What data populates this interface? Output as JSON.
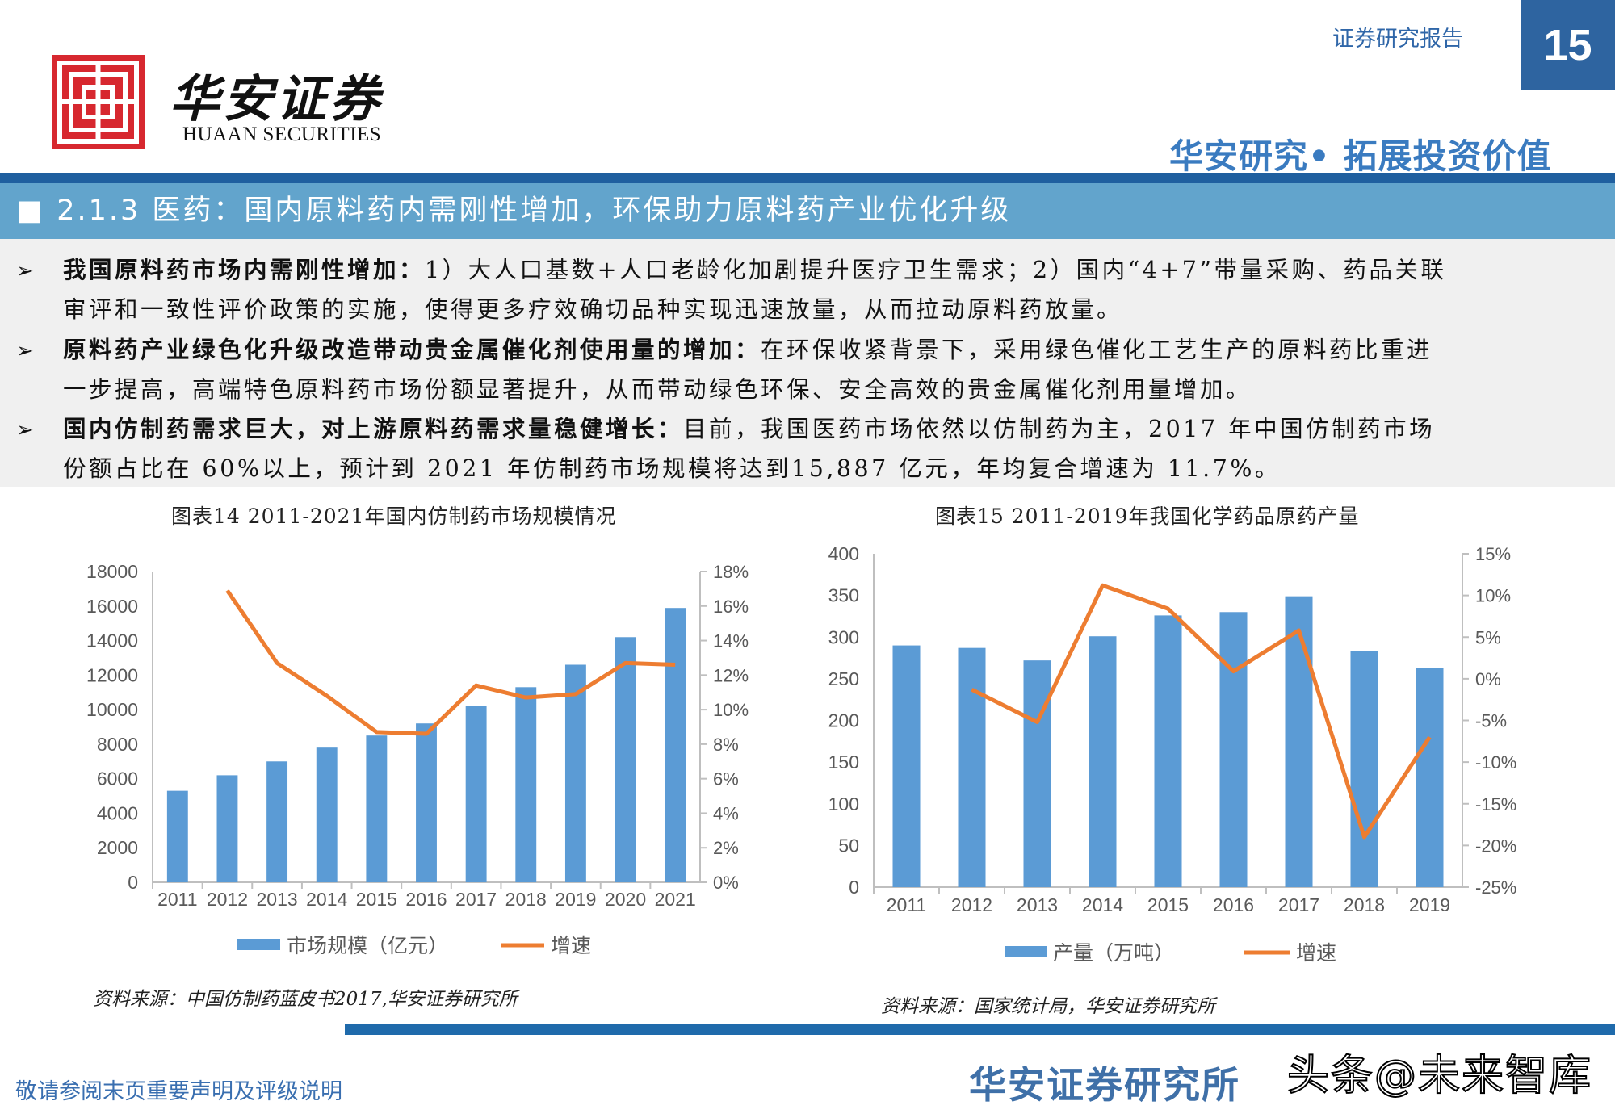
{
  "header": {
    "brand_cn": "华安证券",
    "brand_en": "HUAAN SECURITIES",
    "report_type": "证券研究报告",
    "page_number": "15",
    "slogan": "华安研究• 拓展投资价值",
    "brand_color": "#d7282f",
    "accent": "#2e64a0"
  },
  "section": {
    "title": "■ 2.1.3 医药：国内原料药内需刚性增加，环保助力原料药产业优化升级"
  },
  "bullets": [
    {
      "bold": "我国原料药市场内需刚性增加：",
      "line1": "1）大人口基数+人口老龄化加剧提升医疗卫生需求；2）国内“4+7”带量采购、药品关联",
      "line2": "审评和一致性评价政策的实施，使得更多疗效确切品种实现迅速放量，从而拉动原料药放量。"
    },
    {
      "bold": "原料药产业绿色化升级改造带动贵金属催化剂使用量的增加：",
      "line1": "在环保收紧背景下，采用绿色催化工艺生产的原料药比重进",
      "line2": "一步提高，高端特色原料药市场份额显著提升，从而带动绿色环保、安全高效的贵金属催化剂用量增加。"
    },
    {
      "bold": "国内仿制药需求巨大，对上游原料药需求量稳健增长：",
      "line1": "目前，我国医药市场依然以仿制药为主，2017 年中国仿制药市场",
      "line2": "份额占比在 60%以上，预计到 2021 年仿制药市场规模将达到15,887 亿元，年均复合增速为 11.7%。"
    }
  ],
  "chart_data": [
    {
      "type": "bar+line",
      "title": "图表14 2011-2021年国内仿制药市场规模情况",
      "categories": [
        "2011",
        "2012",
        "2013",
        "2014",
        "2015",
        "2016",
        "2017",
        "2018",
        "2019",
        "2020",
        "2021"
      ],
      "series": [
        {
          "name": "市场规模（亿元）",
          "type": "bar",
          "axis": "left",
          "color": "#5b9bd5",
          "values": [
            5300,
            6200,
            7000,
            7800,
            8500,
            9200,
            10200,
            11300,
            12600,
            14200,
            15887
          ]
        },
        {
          "name": "增速",
          "type": "line",
          "axis": "right",
          "color": "#ed7d31",
          "values": [
            null,
            16.9,
            12.7,
            10.8,
            8.7,
            8.6,
            11.4,
            10.7,
            10.9,
            12.7,
            12.6
          ]
        }
      ],
      "ylim": [
        0,
        18000
      ],
      "yticks": [
        "0",
        "2000",
        "4000",
        "6000",
        "8000",
        "10000",
        "12000",
        "14000",
        "16000",
        "18000"
      ],
      "y2lim": [
        0,
        18
      ],
      "y2ticks": [
        "0%",
        "2%",
        "4%",
        "6%",
        "8%",
        "10%",
        "12%",
        "14%",
        "16%",
        "18%"
      ],
      "legend": "bottom",
      "grid": false,
      "source": "资料来源：中国仿制药蓝皮书2017,华安证券研究所"
    },
    {
      "type": "bar+line",
      "title": "图表15 2011-2019年我国化学药品原药产量",
      "categories": [
        "2011",
        "2012",
        "2013",
        "2014",
        "2015",
        "2016",
        "2017",
        "2018",
        "2019"
      ],
      "series": [
        {
          "name": "产量（万吨）",
          "type": "bar",
          "axis": "left",
          "color": "#5b9bd5",
          "values": [
            290,
            287,
            272,
            301,
            326,
            330,
            349,
            283,
            263
          ]
        },
        {
          "name": "增速",
          "type": "line",
          "axis": "right",
          "color": "#ed7d31",
          "values": [
            null,
            -1.3,
            -5.2,
            11.2,
            8.4,
            0.9,
            5.8,
            -19.0,
            -7.0
          ]
        }
      ],
      "ylim": [
        0,
        400
      ],
      "yticks": [
        "0",
        "50",
        "100",
        "150",
        "200",
        "250",
        "300",
        "350",
        "400"
      ],
      "y2lim": [
        -25,
        15
      ],
      "y2ticks": [
        "-25%",
        "-20%",
        "-15%",
        "-10%",
        "-5%",
        "0%",
        "5%",
        "10%",
        "15%"
      ],
      "legend": "bottom",
      "grid": false,
      "source": "资料来源：国家统计局，华安证券研究所"
    }
  ],
  "footer": {
    "disclaimer": "敬请参阅末页重要声明及评级说明",
    "watermark": "头条@未来智库",
    "watermark_under": "华安证券研究所"
  }
}
